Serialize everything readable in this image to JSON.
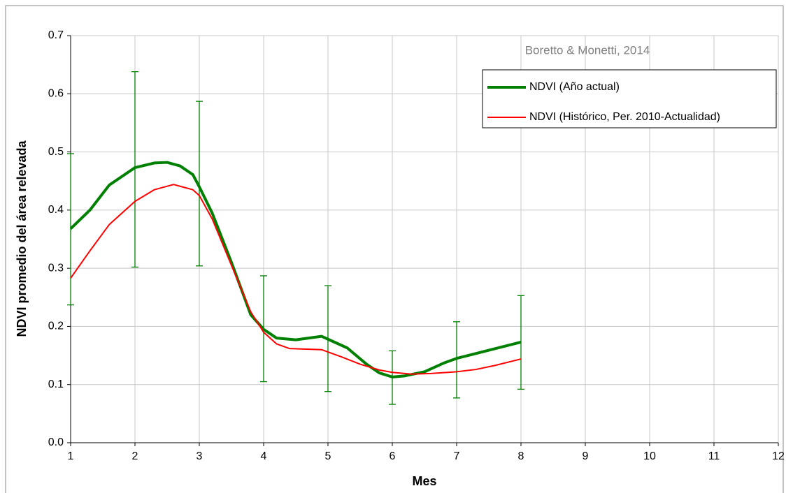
{
  "chart_data": {
    "type": "line",
    "annotation": "Boretto & Monetti, 2014",
    "x_label": "Mes",
    "y_label": "NDVI promedio del área relevada",
    "xlim": [
      1,
      12
    ],
    "xticks": [
      1,
      2,
      3,
      4,
      5,
      6,
      7,
      8,
      9,
      10,
      11,
      12
    ],
    "ylim": [
      0,
      0.7
    ],
    "yticks": [
      {
        "value": 0,
        "label": "0.0"
      },
      0.1,
      0.2,
      0.3,
      0.4,
      0.5,
      0.6,
      0.7
    ],
    "grid": true,
    "legend": "upper right",
    "series": [
      {
        "name": "NDVI (Año actual)",
        "color": "#008000",
        "x": [
          1,
          1.3,
          1.6,
          2,
          2.3,
          2.5,
          2.7,
          2.9,
          3,
          3.2,
          3.5,
          3.8,
          4,
          4.2,
          4.5,
          4.9,
          5,
          5.3,
          5.6,
          5.8,
          6,
          6.2,
          6.5,
          6.8,
          7,
          7.5,
          8
        ],
        "values": [
          0.368,
          0.4,
          0.443,
          0.473,
          0.481,
          0.482,
          0.476,
          0.461,
          0.44,
          0.395,
          0.31,
          0.22,
          0.195,
          0.18,
          0.177,
          0.183,
          0.178,
          0.163,
          0.135,
          0.12,
          0.113,
          0.115,
          0.122,
          0.137,
          0.145,
          0.159,
          0.173
        ]
      },
      {
        "name": "NDVI (Histórico, Per. 2010-Actualidad)",
        "color": "#ff0000",
        "x": [
          1,
          1.3,
          1.6,
          2,
          2.3,
          2.6,
          2.9,
          3,
          3.2,
          3.5,
          3.8,
          4,
          4.2,
          4.4,
          4.9,
          5.2,
          5.5,
          5.8,
          6,
          6.3,
          6.6,
          7,
          7.3,
          7.6,
          8
        ],
        "values": [
          0.283,
          0.33,
          0.375,
          0.415,
          0.435,
          0.444,
          0.435,
          0.425,
          0.385,
          0.305,
          0.225,
          0.19,
          0.17,
          0.162,
          0.16,
          0.148,
          0.135,
          0.125,
          0.121,
          0.118,
          0.119,
          0.122,
          0.126,
          0.133,
          0.144
        ]
      }
    ],
    "error_bars": {
      "color": "#008000",
      "x": [
        1,
        2,
        3,
        4,
        5,
        6,
        7,
        8
      ],
      "low": [
        0.237,
        0.302,
        0.304,
        0.105,
        0.088,
        0.066,
        0.077,
        0.092
      ],
      "high": [
        0.497,
        0.638,
        0.587,
        0.287,
        0.27,
        0.158,
        0.208,
        0.253
      ]
    }
  }
}
